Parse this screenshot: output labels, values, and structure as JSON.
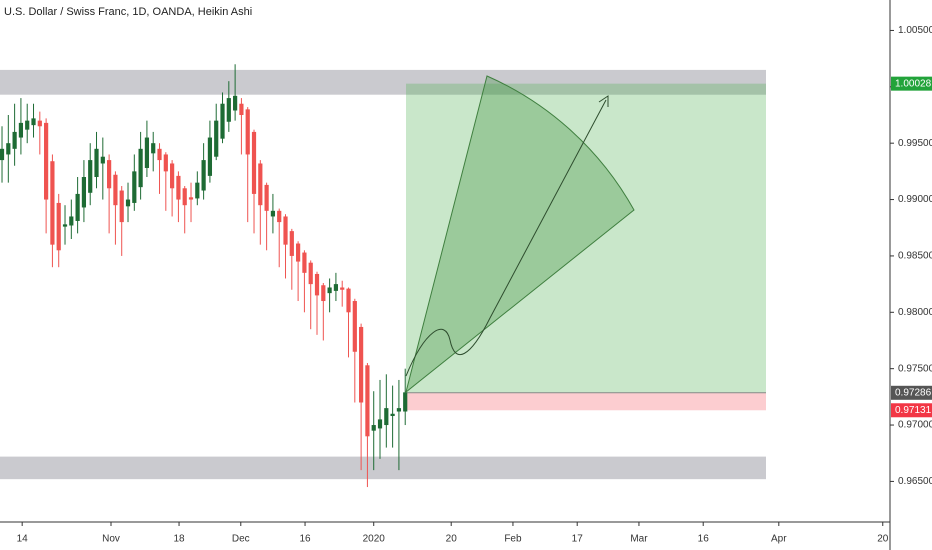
{
  "chart_data": {
    "type": "candlestick",
    "title": "U.S. Dollar / Swiss Franc, 1D, OANDA, Heikin Ashi",
    "up_color": "#1e6b34",
    "down_color": "#ef5350",
    "open": [
      0.9935,
      0.994,
      0.9945,
      0.9955,
      0.9962,
      0.9966,
      0.997,
      0.9968,
      0.9934,
      0.9897,
      0.9876,
      0.9877,
      0.9881,
      0.9893,
      0.9906,
      0.992,
      0.9932,
      0.9935,
      0.9922,
      0.9908,
      0.9894,
      0.9897,
      0.9911,
      0.9928,
      0.9941,
      0.9945,
      0.994,
      0.9932,
      0.9921,
      0.991,
      0.9902,
      0.9901,
      0.9908,
      0.9921,
      0.9938,
      0.9954,
      0.9969,
      0.9979,
      0.9985,
      0.998,
      0.996,
      0.9932,
      0.9913,
      0.9885,
      0.989,
      0.9885,
      0.9872,
      0.9861,
      0.9853,
      0.9844,
      0.9834,
      0.9824,
      0.9817,
      0.9819,
      0.9822,
      0.9821,
      0.981,
      0.9787,
      0.9753,
      0.9695,
      0.9697,
      0.97,
      0.9708,
      0.9712,
      0.9712
    ],
    "high": [
      0.9965,
      0.9975,
      0.9985,
      0.999,
      0.9985,
      0.9985,
      0.9978,
      0.9972,
      0.994,
      0.9905,
      0.9895,
      0.99,
      0.992,
      0.9935,
      0.995,
      0.996,
      0.9955,
      0.994,
      0.9925,
      0.9912,
      0.9915,
      0.994,
      0.996,
      0.997,
      0.996,
      0.995,
      0.9942,
      0.9935,
      0.9925,
      0.9912,
      0.9915,
      0.9925,
      0.995,
      0.997,
      0.9985,
      0.9995,
      1.0005,
      1.002,
      0.999,
      0.9982,
      0.9962,
      0.9935,
      0.9915,
      0.9905,
      0.9892,
      0.9887,
      0.9874,
      0.9863,
      0.9855,
      0.9846,
      0.9836,
      0.9826,
      0.983,
      0.9835,
      0.9828,
      0.9822,
      0.9812,
      0.979,
      0.9755,
      0.973,
      0.974,
      0.9745,
      0.9735,
      0.974,
      0.975
    ],
    "low": [
      0.9915,
      0.9915,
      0.993,
      0.994,
      0.995,
      0.9955,
      0.994,
      0.987,
      0.984,
      0.984,
      0.986,
      0.9865,
      0.987,
      0.988,
      0.9895,
      0.991,
      0.99,
      0.987,
      0.986,
      0.985,
      0.988,
      0.989,
      0.99,
      0.992,
      0.9925,
      0.9905,
      0.989,
      0.9885,
      0.988,
      0.987,
      0.988,
      0.9895,
      0.99,
      0.9915,
      0.9935,
      0.995,
      0.996,
      0.997,
      0.994,
      0.988,
      0.987,
      0.986,
      0.9855,
      0.987,
      0.984,
      0.983,
      0.982,
      0.981,
      0.98,
      0.9785,
      0.978,
      0.9775,
      0.98,
      0.981,
      0.9805,
      0.976,
      0.972,
      0.966,
      0.9645,
      0.966,
      0.967,
      0.968,
      0.968,
      0.966,
      0.97
    ],
    "close": [
      0.9945,
      0.995,
      0.996,
      0.9968,
      0.997,
      0.9972,
      0.9965,
      0.99,
      0.986,
      0.9855,
      0.9878,
      0.9885,
      0.9905,
      0.992,
      0.9935,
      0.9945,
      0.9938,
      0.991,
      0.9895,
      0.988,
      0.99,
      0.9925,
      0.9945,
      0.9955,
      0.995,
      0.9935,
      0.9925,
      0.991,
      0.99,
      0.9895,
      0.99,
      0.9915,
      0.9935,
      0.9955,
      0.997,
      0.9985,
      0.999,
      0.9992,
      0.9975,
      0.994,
      0.9905,
      0.9895,
      0.989,
      0.989,
      0.988,
      0.986,
      0.985,
      0.9845,
      0.9835,
      0.9825,
      0.9815,
      0.981,
      0.9822,
      0.9825,
      0.982,
      0.98,
      0.9765,
      0.972,
      0.969,
      0.97,
      0.9705,
      0.9715,
      0.971,
      0.9715,
      0.9729
    ],
    "xlim": [
      -0.32,
      140.95
    ],
    "xticks": [
      {
        "value": 3.2,
        "label": "14"
      },
      {
        "value": 17.3,
        "label": "Nov"
      },
      {
        "value": 28.1,
        "label": "18"
      },
      {
        "value": 37.9,
        "label": "Dec"
      },
      {
        "value": 48.1,
        "label": "16"
      },
      {
        "value": 59,
        "label": "2020"
      },
      {
        "value": 71.3,
        "label": "20"
      },
      {
        "value": 81.1,
        "label": "Feb"
      },
      {
        "value": 91.3,
        "label": "17"
      },
      {
        "value": 101.1,
        "label": "Mar"
      },
      {
        "value": 111.3,
        "label": "16"
      },
      {
        "value": 123.3,
        "label": "Apr"
      },
      {
        "value": 139.8,
        "label": "20"
      }
    ],
    "ylim": [
      0.9614,
      1.0077
    ],
    "yticks": [
      {
        "value": 0.965,
        "label": "0.96500"
      },
      {
        "value": 0.97,
        "label": "0.97000"
      },
      {
        "value": 0.975,
        "label": "0.97500"
      },
      {
        "value": 0.98,
        "label": "0.98000"
      },
      {
        "value": 0.985,
        "label": "0.98500"
      },
      {
        "value": 0.99,
        "label": "0.99000"
      },
      {
        "value": 0.995,
        "label": "0.99500"
      },
      {
        "value": 1.0,
        "label": "1.00000"
      },
      {
        "value": 1.005,
        "label": "1.00500"
      }
    ],
    "zones": [
      {
        "low": 0.9993,
        "high": 1.0015
      },
      {
        "low": 0.9652,
        "high": 0.9672
      }
    ],
    "position": {
      "target": 1.00028,
      "entry": 0.97286,
      "stop": 0.97131
    },
    "price_labels": [
      {
        "value": 1.00028,
        "color": "#22a33a"
      },
      {
        "value": 0.97286,
        "color": "#555555"
      },
      {
        "value": 0.97131,
        "color": "#f23645"
      }
    ]
  }
}
